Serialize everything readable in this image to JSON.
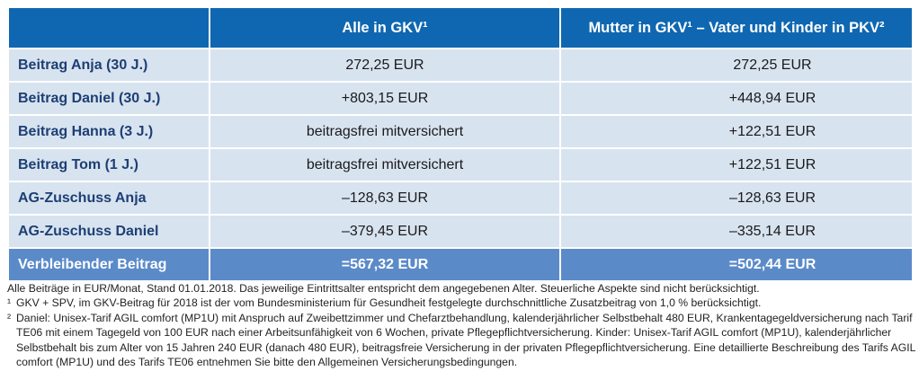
{
  "table": {
    "headers": [
      "",
      "Alle in GKV¹",
      "Mutter in GKV¹ – Vater und Kinder in PKV²"
    ],
    "rows": [
      {
        "label": "Beitrag Anja (30 J.)",
        "gkv": "272,25 EUR",
        "pkv": "272,25 EUR"
      },
      {
        "label": "Beitrag Daniel (30 J.)",
        "gkv": "+803,15 EUR",
        "pkv": "+448,94 EUR"
      },
      {
        "label": "Beitrag Hanna (3 J.)",
        "gkv": "beitragsfrei mitversichert",
        "pkv": "+122,51 EUR"
      },
      {
        "label": "Beitrag Tom (1 J.)",
        "gkv": "beitragsfrei mitversichert",
        "pkv": "+122,51 EUR"
      },
      {
        "label": "AG-Zuschuss Anja",
        "gkv": "–128,63 EUR",
        "pkv": "–128,63 EUR"
      },
      {
        "label": "AG-Zuschuss Daniel",
        "gkv": "–379,45 EUR",
        "pkv": "–335,14 EUR"
      }
    ],
    "total": {
      "label": "Verbleibender Beitrag",
      "gkv": "=567,32 EUR",
      "pkv": "=502,44 EUR"
    }
  },
  "notes": {
    "intro": "Alle Beiträge in EUR/Monat, Stand 01.01.2018. Das jeweilige Eintrittsalter entspricht dem angegebenen Alter. Steuerliche Aspekte sind nicht berücksichtigt.",
    "fn1_mark": "¹",
    "fn1": "GKV + SPV, im GKV-Beitrag für 2018 ist der vom Bundesministerium für Gesundheit festgelegte durchschnittliche Zusatzbeitrag von 1,0 % berücksichtigt.",
    "fn2_mark": "²",
    "fn2": "Daniel: Unisex-Tarif AGIL comfort (MP1U) mit Anspruch auf Zweibettzimmer und Chefarztbehandlung, kalenderjährlicher Selbstbehalt 480 EUR, Krankentagegeldversicherung nach Tarif TE06 mit einem Tagegeld von 100 EUR nach einer Arbeitsunfähigkeit von 6 Wochen, private Pflegepflichtversicherung. Kinder: Unisex-Tarif AGIL comfort (MP1U), kalenderjährlicher Selbstbehalt bis zum Alter von 15 Jahren 240 EUR (danach 480 EUR), beitragsfreie Versicherung in der privaten Pflegepflichtversicherung. Eine detaillierte Beschreibung des Tarifs AGIL comfort (MP1U) und des Tarifs TE06 entnehmen Sie bitte den Allgemeinen Versicherungsbedingungen."
  }
}
